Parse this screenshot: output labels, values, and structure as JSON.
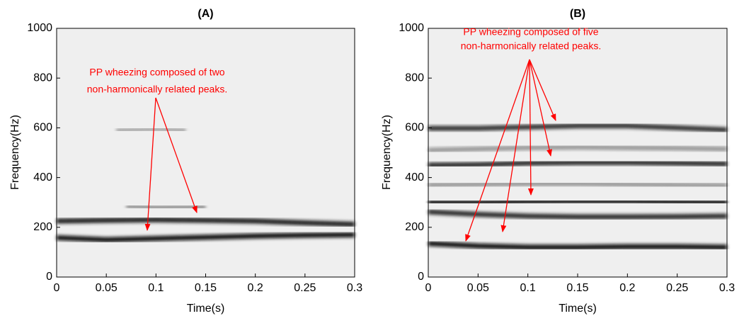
{
  "chart_data": [
    {
      "type": "spectrogram",
      "title": "(A)",
      "x_label": "Time(s)",
      "y_label": "Frequency(Hz)",
      "xlim": [
        0,
        0.3
      ],
      "ylim": [
        0,
        1000
      ],
      "xticks": [
        0,
        0.05,
        0.1,
        0.15,
        0.2,
        0.25,
        0.3
      ],
      "yticks": [
        0,
        200,
        400,
        600,
        800,
        1000
      ],
      "annotation": [
        "PP wheezing composed of two",
        "non-harmonically related peaks."
      ],
      "series": [
        {
          "color": "#1a1a1a",
          "x": [
            0,
            0.05,
            0.1,
            0.15,
            0.2,
            0.25,
            0.3
          ],
          "values": [
            225,
            228,
            230,
            228,
            225,
            218,
            212
          ]
        },
        {
          "color": "#111111",
          "x": [
            0,
            0.05,
            0.1,
            0.15,
            0.2,
            0.25,
            0.3
          ],
          "values": [
            158,
            150,
            155,
            160,
            165,
            168,
            170
          ]
        },
        {
          "color": "#999999",
          "x": [
            0.07,
            0.1,
            0.15
          ],
          "values": [
            285,
            280,
            282
          ]
        },
        {
          "color": "#aaaaaa",
          "x": [
            0.06,
            0.1,
            0.13
          ],
          "values": [
            590,
            595,
            590
          ]
        }
      ]
    },
    {
      "type": "spectrogram",
      "title": "(B)",
      "x_label": "Time(s)",
      "y_label": "Frequency(Hz)",
      "xlim": [
        0,
        0.3
      ],
      "ylim": [
        0,
        1000
      ],
      "xticks": [
        0,
        0.05,
        0.1,
        0.15,
        0.2,
        0.25,
        0.3
      ],
      "yticks": [
        0,
        200,
        400,
        600,
        800,
        1000
      ],
      "annotation": [
        "PP wheezing composed of five",
        "non-harmonically related peaks."
      ],
      "series": [
        {
          "color": "#333333",
          "x": [
            0,
            0.05,
            0.1,
            0.15,
            0.2,
            0.25,
            0.3
          ],
          "values": [
            598,
            598,
            603,
            608,
            608,
            600,
            592
          ]
        },
        {
          "color": "#999999",
          "x": [
            0,
            0.05,
            0.1,
            0.15,
            0.2,
            0.25,
            0.3
          ],
          "values": [
            510,
            515,
            520,
            522,
            520,
            518,
            515
          ]
        },
        {
          "color": "#2a2a2a",
          "x": [
            0,
            0.05,
            0.1,
            0.15,
            0.2,
            0.25,
            0.3
          ],
          "values": [
            450,
            452,
            458,
            460,
            460,
            458,
            455
          ]
        },
        {
          "color": "#999999",
          "x": [
            0,
            0.05,
            0.1,
            0.15,
            0.2,
            0.25,
            0.3
          ],
          "values": [
            370,
            372,
            375,
            375,
            372,
            370,
            368
          ]
        },
        {
          "color": "#1a1a1a",
          "x": [
            0,
            0.05,
            0.1,
            0.15,
            0.2,
            0.25,
            0.3
          ],
          "values": [
            300,
            300,
            303,
            305,
            305,
            302,
            300
          ]
        },
        {
          "color": "#2a2a2a",
          "x": [
            0,
            0.05,
            0.1,
            0.15,
            0.2,
            0.25,
            0.3
          ],
          "values": [
            262,
            252,
            245,
            242,
            242,
            243,
            245
          ]
        },
        {
          "color": "#111111",
          "x": [
            0,
            0.05,
            0.1,
            0.15,
            0.2,
            0.25,
            0.3
          ],
          "values": [
            135,
            125,
            120,
            120,
            122,
            122,
            120
          ]
        }
      ]
    }
  ]
}
